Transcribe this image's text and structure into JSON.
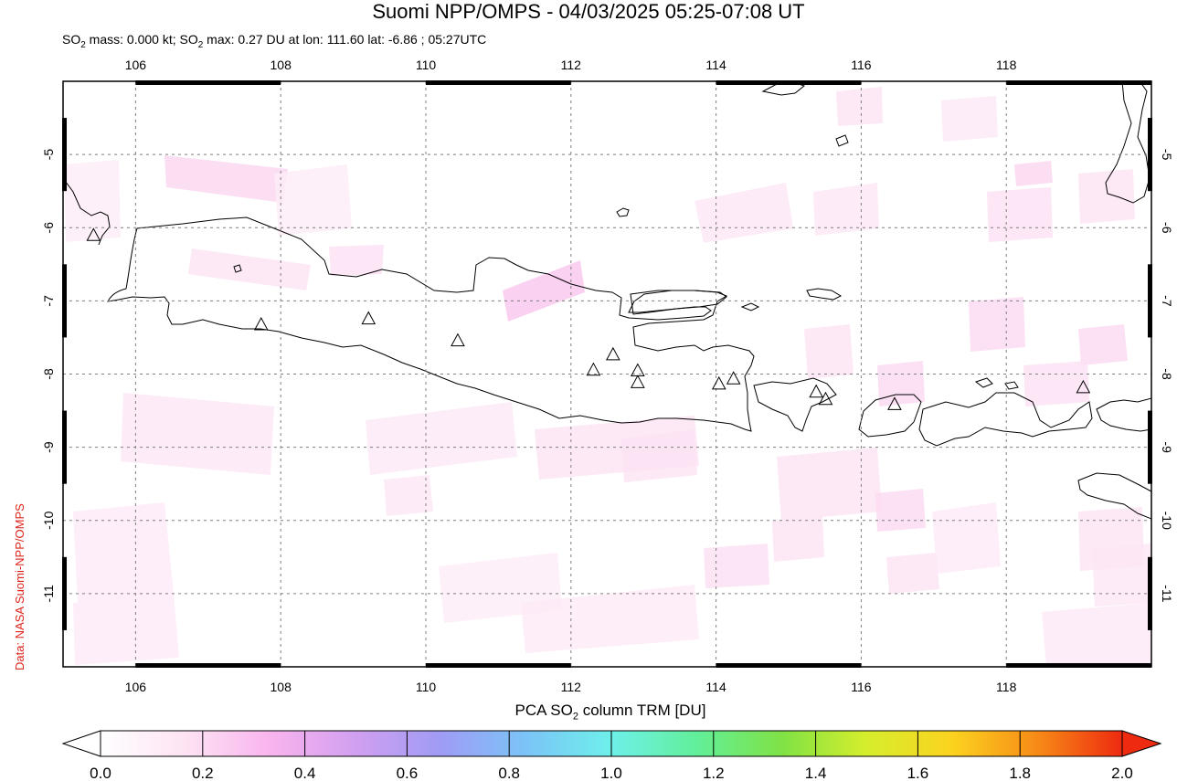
{
  "header": {
    "title": "Suomi NPP/OMPS - 04/03/2025 05:25-07:08 UT",
    "subtitle_a": "SO",
    "subtitle_b": " mass: 0.000 kt; SO",
    "subtitle_c": " max: 0.27 DU at lon: 111.60 lat: -6.86 ; 05:27UTC",
    "subscript": "2"
  },
  "credit": "Data: NASA Suomi-NPP/OMPS",
  "map": {
    "lon_range": [
      105,
      120
    ],
    "lat_range": [
      -12,
      -4
    ],
    "lon_ticks": [
      "106",
      "108",
      "110",
      "112",
      "114",
      "116",
      "118"
    ],
    "lat_ticks": [
      "-5",
      "-6",
      "-7",
      "-8",
      "-9",
      "-10",
      "-11"
    ],
    "grid": true,
    "volcanoes": [
      [
        105.42,
        -6.1
      ],
      [
        107.73,
        -7.32
      ],
      [
        109.21,
        -7.24
      ],
      [
        110.44,
        -7.54
      ],
      [
        112.31,
        -7.94
      ],
      [
        112.58,
        -7.73
      ],
      [
        112.92,
        -7.95
      ],
      [
        112.92,
        -8.11
      ],
      [
        114.04,
        -8.13
      ],
      [
        114.24,
        -8.06
      ],
      [
        115.38,
        -8.24
      ],
      [
        115.51,
        -8.34
      ],
      [
        116.46,
        -8.41
      ],
      [
        119.06,
        -8.18
      ]
    ],
    "so2_max_location": {
      "lon": 111.6,
      "lat": -6.86,
      "value": 0.27
    }
  },
  "colorbar": {
    "label_a": "PCA SO",
    "label_sub": "2",
    "label_b": " column TRM [DU]",
    "ticks": [
      "0.0",
      "0.2",
      "0.4",
      "0.6",
      "0.8",
      "1.0",
      "1.2",
      "1.4",
      "1.6",
      "1.8",
      "2.0"
    ],
    "range": [
      0,
      2
    ],
    "colors": [
      "#ffffff",
      "#fde3f3",
      "#f9b4ee",
      "#d19ff0",
      "#9f9cf5",
      "#7bc4f7",
      "#6ef0ea",
      "#62ef9a",
      "#7fe245",
      "#d6ee2c",
      "#fbd31f",
      "#f78b17",
      "#ee2a10"
    ]
  }
}
